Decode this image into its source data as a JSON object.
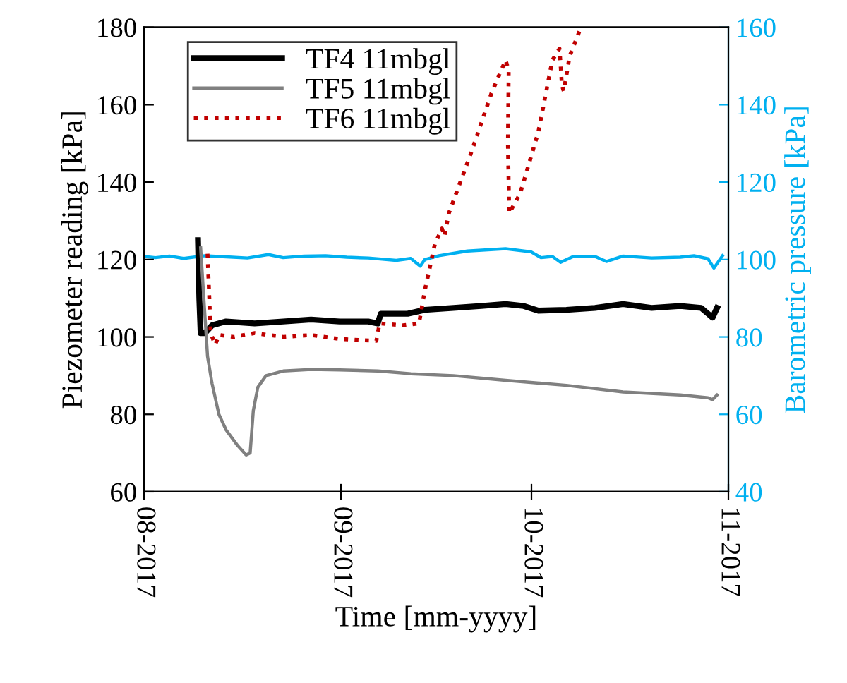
{
  "chart_data": {
    "type": "line",
    "xlabel": "Time [mm-yyyy]",
    "ylabel": "Piezometer reading [kPa]",
    "y2label": "Barometric pressure [kPa]",
    "xlim": [
      "2017-08-01",
      "2017-11-01"
    ],
    "xticks": [
      {
        "value": "2017-08-01",
        "label": "08-2017"
      },
      {
        "value": "2017-09-01",
        "label": "09-2017"
      },
      {
        "value": "2017-10-01",
        "label": "10-2017"
      },
      {
        "value": "2017-11-01",
        "label": "11-2017"
      }
    ],
    "ylim": [
      60,
      180
    ],
    "yticks": [
      60,
      80,
      100,
      120,
      140,
      160,
      180
    ],
    "y2lim": [
      40,
      160
    ],
    "y2ticks": [
      40,
      60,
      80,
      100,
      120,
      140,
      160
    ],
    "grid": false,
    "legend": "top left",
    "marker": "none",
    "series": [
      {
        "name": "TF4 11mbgl",
        "color": "#000000",
        "line_style": "solid",
        "x": [
          "2017-08-09T12:00",
          "2017-08-09T17:00",
          "2017-08-09T22:00",
          "2017-08-10T14:00",
          "2017-08-11T17:00",
          "2017-08-13T22:00",
          "2017-08-18T10:00",
          "2017-08-22T22:00",
          "2017-08-27T07:00",
          "2017-08-31T19:00",
          "2017-09-05T07:00",
          "2017-09-06T19:00",
          "2017-09-07T07:00",
          "2017-09-11T12:00",
          "2017-09-14T05:00",
          "2017-09-18T17:00",
          "2017-09-23T02:00",
          "2017-09-26T22:00",
          "2017-09-29T19:00",
          "2017-10-02T02:00",
          "2017-10-06T12:00",
          "2017-10-11T00:00",
          "2017-10-15T10:00",
          "2017-10-19T22:00",
          "2017-10-24T10:00",
          "2017-10-27T17:00",
          "2017-10-28T19:00",
          "2017-10-29T12:00",
          "2017-10-30T05:00"
        ],
        "values": [
          125,
          110,
          101,
          101,
          103,
          104,
          103.5,
          104,
          104.5,
          104,
          104,
          103.5,
          106,
          106,
          107,
          107.5,
          108,
          108.5,
          108,
          106.8,
          107,
          107.5,
          108.5,
          107.5,
          108,
          107.5,
          106,
          105,
          107.5
        ]
      },
      {
        "name": "TF5 11mbgl",
        "color": "#808080",
        "line_style": "solid",
        "x": [
          "2017-08-09T22:00",
          "2017-08-10T10:00",
          "2017-08-11T00:00",
          "2017-08-11T17:00",
          "2017-08-12T19:00",
          "2017-08-13T22:00",
          "2017-08-15T17:00",
          "2017-08-17T02:00",
          "2017-08-17T17:00",
          "2017-08-18T05:00",
          "2017-08-18T22:00",
          "2017-08-20T05:00",
          "2017-08-22T22:00",
          "2017-08-27T07:00",
          "2017-08-31T19:00",
          "2017-09-06T19:00",
          "2017-09-12T00:00",
          "2017-09-18T17:00",
          "2017-09-26T22:00",
          "2017-10-06T12:00",
          "2017-10-15T10:00",
          "2017-10-24T10:00",
          "2017-10-28T19:00",
          "2017-10-29T12:00",
          "2017-10-30T05:00"
        ],
        "values": [
          123,
          110,
          95,
          88,
          80,
          76,
          72,
          69.5,
          70,
          81,
          87,
          90,
          91.2,
          91.6,
          91.5,
          91.2,
          90.5,
          90,
          88.8,
          87.5,
          85.8,
          85,
          84.3,
          83.8,
          85
        ]
      },
      {
        "name": "TF6 11mbgl",
        "color": "#c00000",
        "line_style": "dotted",
        "x": [
          "2017-08-11T00:00",
          "2017-08-11T12:00",
          "2017-08-12T05:00",
          "2017-08-12T19:00",
          "2017-08-15T02:00",
          "2017-08-18T10:00",
          "2017-08-22T22:00",
          "2017-08-27T07:00",
          "2017-08-31T19:00",
          "2017-09-06T14:00",
          "2017-09-07T02:00",
          "2017-09-10T19:00",
          "2017-09-13T07:00",
          "2017-09-14T05:00",
          "2017-09-15T19:00",
          "2017-09-16T22:00",
          "2017-09-17T07:00",
          "2017-09-18T00:00",
          "2017-09-21T14:00",
          "2017-09-24T17:00",
          "2017-09-26T22:00",
          "2017-09-27T10:00",
          "2017-09-27T07:00",
          "2017-09-27T12:00",
          "2017-09-29T05:00",
          "2017-10-02T02:00",
          "2017-10-04T07:00",
          "2017-10-05T10:00",
          "2017-10-05T19:00",
          "2017-10-06T02:00",
          "2017-10-07T00:00",
          "2017-10-08T19:00"
        ],
        "values": [
          121.5,
          101,
          98,
          100.5,
          100,
          101,
          100,
          100.5,
          99.5,
          99,
          103.5,
          103,
          103.5,
          112,
          124,
          128,
          126,
          132,
          148,
          163,
          171.5,
          169,
          150,
          132,
          137,
          153,
          171.5,
          174.5,
          165,
          163.5,
          172.5,
          180
        ]
      },
      {
        "color": "#00b0f0",
        "axis": "y2",
        "line_style": "solid",
        "x": [
          "2017-08-01T00:00",
          "2017-08-02T19:00",
          "2017-08-05T00:00",
          "2017-08-07T06:00",
          "2017-08-10T14:00",
          "2017-08-13T22:00",
          "2017-08-17T07:00",
          "2017-08-20T14:00",
          "2017-08-22T22:00",
          "2017-08-26T05:00",
          "2017-08-29T14:00",
          "2017-09-01T22:00",
          "2017-09-05T07:00",
          "2017-09-09T17:00",
          "2017-09-12T00:00",
          "2017-09-13T12:00",
          "2017-09-14T05:00",
          "2017-09-16T10:00",
          "2017-09-20T22:00",
          "2017-09-26T22:00",
          "2017-09-30T22:00",
          "2017-10-02T12:00",
          "2017-10-04T07:00",
          "2017-10-05T14:00",
          "2017-10-07T14:00",
          "2017-10-11T00:00",
          "2017-10-12T19:00",
          "2017-10-15T10:00",
          "2017-10-19T22:00",
          "2017-10-24T10:00",
          "2017-10-26T14:00",
          "2017-10-28T19:00",
          "2017-10-29T17:00",
          "2017-10-31T02:00"
        ],
        "values": [
          100.8,
          100.5,
          100.9,
          100.3,
          101,
          100.7,
          100.4,
          101.3,
          100.5,
          100.9,
          101,
          100.6,
          100.4,
          99.8,
          100.3,
          98.3,
          100,
          101,
          102.2,
          102.8,
          102,
          100.5,
          100.8,
          99.3,
          100.8,
          100.8,
          99.5,
          100.9,
          100.4,
          100.6,
          101,
          100.2,
          97.8,
          101
        ]
      }
    ]
  }
}
